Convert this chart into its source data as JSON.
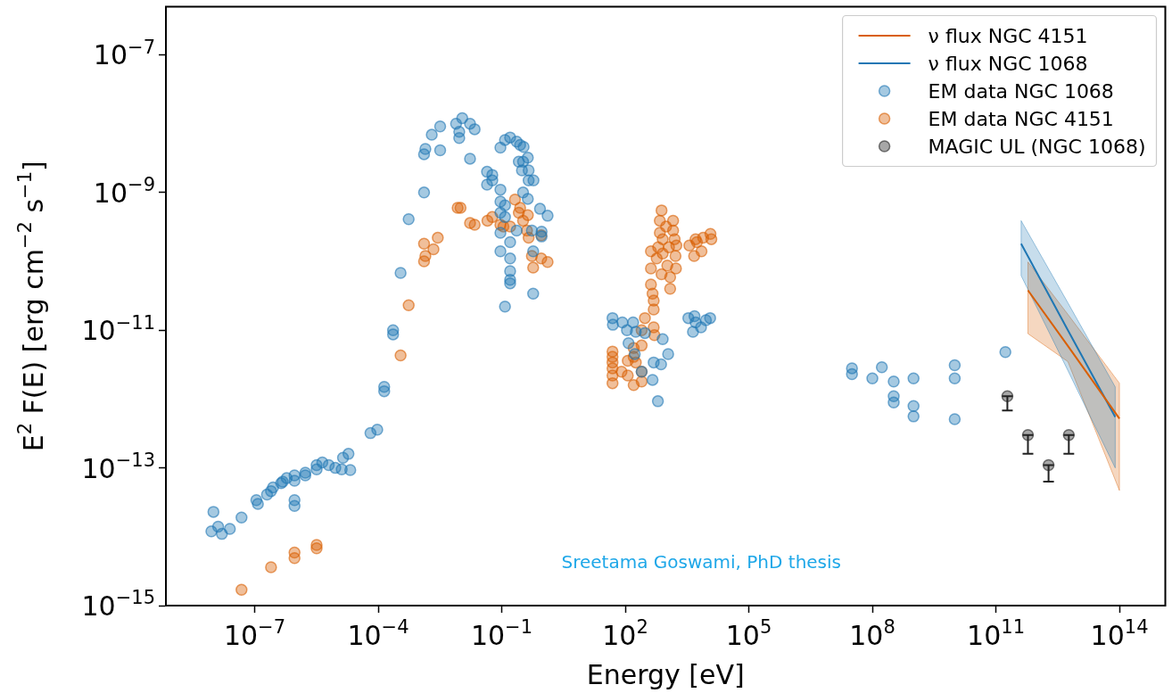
{
  "chart_data": {
    "type": "scatter",
    "xlabel": "Energy [eV]",
    "ylabel": "E$^{2}$ F(E) [erg cm$^{−2}$ s$^{−1}$]",
    "log": "xy",
    "legend": "top right",
    "xlim": [
      7e-10,
      1300000000000000.0
    ],
    "ylim": [
      1e-15,
      5e-07
    ],
    "xticks": [
      {
        "value": 1e-07,
        "label": "10$^{−7}$"
      },
      {
        "value": 0.0001,
        "label": "10$^{−4}$"
      },
      {
        "value": 0.1,
        "label": "10$^{−1}$"
      },
      {
        "value": 100,
        "label": "10$^{2}$"
      },
      {
        "value": 100000.0,
        "label": "10$^{5}$"
      },
      {
        "value": 100000000.0,
        "label": "10$^{8}$"
      },
      {
        "value": 100000000000.0,
        "label": "10$^{11}$"
      },
      {
        "value": 100000000000000.0,
        "label": "10$^{14}$"
      }
    ],
    "yticks": [
      {
        "value": 1e-15,
        "label": "10$^{−15}$"
      },
      {
        "value": 1e-13,
        "label": "10$^{−13}$"
      },
      {
        "value": 1e-11,
        "label": "10$^{−11}$"
      },
      {
        "value": 1e-09,
        "label": "10$^{−9}$"
      },
      {
        "value": 1e-07,
        "label": "10$^{−7}$"
      }
    ],
    "annotations": [
      "Sreetama Goswami, PhD thesis"
    ],
    "series": [
      {
        "name": "ν flux NGC 4151",
        "type": "line",
        "marker": "none",
        "color": "#d95f02",
        "x": [
          600000000000.0,
          5600000000000.0,
          100000000000000.0
        ],
        "values": [
          3.8e-11,
          5.9e-12,
          5.2e-13
        ],
        "lower": [
          8.9e-12,
          3.5e-12,
          4.7e-14
        ],
        "upper": [
          9.8e-11,
          1.7e-11,
          1.7e-12
        ]
      },
      {
        "name": "ν flux NGC 1068",
        "type": "line",
        "marker": "none",
        "color": "#1f77b4",
        "x": [
          410000000000.0,
          5600000000000.0,
          79000000000000.0
        ],
        "values": [
          1.8e-10,
          1e-11,
          5.5e-13
        ],
        "lower": [
          6.2e-11,
          2.6e-12,
          1e-13
        ],
        "upper": [
          3.9e-10,
          2.5e-11,
          1.5e-12
        ]
      },
      {
        "name": "EM data NGC 1068",
        "type": "scatter",
        "marker": "circle",
        "color": "#1f77b4",
        "x": [
          1e-08,
          8.9e-09,
          1.3e-08,
          1.6e-08,
          2.5e-08,
          4.8e-08,
          1.1e-07,
          1.2e-07,
          2e-07,
          2.5e-07,
          2.8e-07,
          4.4e-07,
          4.8e-07,
          6e-07,
          9.3e-07,
          9.3e-07,
          9.3e-07,
          9.3e-07,
          1.7e-06,
          1.7e-06,
          3.2e-06,
          3.2e-06,
          4.4e-06,
          6.3e-06,
          9.1e-06,
          1.3e-05,
          2.1e-05,
          1.4e-05,
          1.9e-05,
          6.5e-05,
          9.5e-05,
          0.00014,
          0.00014,
          0.00023,
          0.00023,
          0.00035,
          0.00055,
          0.0013,
          0.0013,
          0.0014,
          0.002,
          0.0032,
          0.0032,
          0.0078,
          0.0093,
          0.0093,
          0.011,
          0.017,
          0.022,
          0.017,
          0.044,
          0.059,
          0.044,
          0.059,
          0.093,
          0.093,
          0.12,
          0.16,
          0.23,
          0.28,
          0.34,
          0.43,
          0.26,
          0.33,
          0.31,
          0.45,
          0.45,
          0.59,
          0.33,
          0.43,
          0.093,
          0.12,
          0.093,
          0.12,
          0.23,
          0.093,
          0.16,
          0.093,
          0.16,
          0.16,
          0.16,
          0.16,
          0.58,
          0.58,
          0.12,
          0.85,
          1.3,
          0.93,
          0.93,
          0.54,
          49,
          50,
          85,
          110,
          155,
          180,
          120,
          300,
          810,
          1100,
          490,
          740,
          460,
          620,
          170,
          250,
          3400,
          4800,
          5100,
          6900,
          9100,
          11500,
          4400,
          32000000.0,
          32000000.0,
          100000000.0,
          170000000.0,
          330000000.0,
          330000000.0,
          330000000.0,
          1000000000.0,
          1000000000.0,
          1000000000.0,
          10000000000.0,
          10000000000.0,
          10000000000.0,
          170000000000.0
        ],
        "values": [
          2.3e-14,
          1.2e-14,
          1.4e-14,
          1.1e-14,
          1.3e-14,
          1.9e-14,
          3.4e-14,
          3e-14,
          4.1e-14,
          4.6e-14,
          5.2e-14,
          6e-14,
          6.3e-14,
          7.1e-14,
          7.8e-14,
          6.5e-14,
          3.4e-14,
          2.8e-14,
          8.5e-14,
          7.8e-14,
          9.5e-14,
          1.1e-13,
          1.2e-13,
          1.1e-13,
          1e-13,
          9.5e-14,
          9.3e-14,
          1.4e-13,
          1.6e-13,
          3.2e-13,
          3.6e-13,
          1.5e-12,
          1.3e-12,
          1e-11,
          8.7e-12,
          6.8e-11,
          4.1e-10,
          1e-09,
          3.6e-09,
          4.3e-09,
          6.9e-09,
          9.1e-09,
          4.1e-09,
          1e-08,
          7.6e-09,
          6.2e-09,
          1.2e-08,
          1e-08,
          8.3e-09,
          3.1e-09,
          2e-09,
          1.8e-09,
          1.3e-09,
          1.5e-09,
          4.5e-09,
          1.1e-09,
          5.8e-09,
          6.3e-09,
          5.5e-09,
          4.9e-09,
          4.6e-09,
          3.2e-09,
          2.8e-09,
          2.8e-09,
          2.1e-09,
          2.1e-09,
          1.5e-09,
          1.5e-09,
          1e-09,
          8.1e-10,
          7.4e-10,
          6.5e-10,
          5.1e-10,
          4.4e-10,
          2.8e-10,
          2.6e-10,
          1.9e-10,
          1.4e-10,
          1.1e-10,
          7.2e-11,
          5.4e-11,
          4.8e-11,
          1.4e-10,
          3.4e-11,
          2.2e-11,
          5.8e-10,
          4.6e-10,
          2.7e-10,
          2.3e-10,
          2.8e-10,
          1.5e-11,
          1.2e-11,
          1.3e-11,
          1e-11,
          1.3e-11,
          9.5e-12,
          6.5e-12,
          9.1e-12,
          7.4e-12,
          4.5e-12,
          3.4e-12,
          3.2e-12,
          1.9e-12,
          9.3e-13,
          4.5e-12,
          2.5e-12,
          1.5e-11,
          1.6e-11,
          1.3e-11,
          1.1e-11,
          1.4e-11,
          1.5e-11,
          9.5e-12,
          2.8e-12,
          2.3e-12,
          2e-12,
          2.9e-12,
          1.8e-12,
          1.1e-12,
          8.9e-13,
          2e-12,
          7.9e-13,
          5.6e-13,
          3.1e-12,
          2e-12,
          5.1e-13,
          4.8e-12
        ]
      },
      {
        "name": "EM data NGC 4151",
        "type": "scatter",
        "marker": "circle",
        "color": "#d95f02",
        "x": [
          4.8e-08,
          2.5e-07,
          9.3e-07,
          9.3e-07,
          3.2e-06,
          3.2e-06,
          0.00035,
          0.00055,
          0.0013,
          0.0013,
          0.0014,
          0.0022,
          0.0028,
          0.0085,
          0.01,
          0.017,
          0.022,
          0.045,
          0.059,
          0.093,
          0.11,
          0.16,
          0.21,
          0.28,
          0.26,
          0.33,
          0.43,
          0.41,
          0.45,
          0.91,
          0.54,
          0.58,
          0.91,
          1.3,
          49,
          49,
          49,
          49,
          49,
          49,
          81,
          115,
          115,
          160,
          160,
          180,
          160,
          250,
          250,
          250,
          250,
          300,
          490,
          490,
          510,
          490,
          420,
          420,
          420,
          460,
          580,
          630,
          690,
          690,
          760,
          760,
          810,
          810,
          980,
          1050,
          1150,
          1230,
          1230,
          1450,
          1580,
          1660,
          1700,
          1450,
          1740,
          3600,
          4700,
          5100,
          7100,
          7800,
          11700,
          12300,
          5500
        ],
        "values": [
          1.7e-15,
          3.6e-15,
          5.9e-15,
          4.9e-15,
          7.6e-15,
          6.8e-15,
          4.3e-12,
          2.3e-11,
          1.8e-10,
          1e-10,
          1.2e-10,
          1.5e-10,
          2.2e-10,
          6e-10,
          6e-10,
          3.6e-10,
          3.4e-10,
          3.9e-10,
          4.4e-10,
          3.4e-10,
          3.2e-10,
          3.2e-10,
          7.9e-10,
          6e-10,
          5.1e-10,
          3.9e-10,
          4.7e-10,
          2.8e-10,
          2.2e-10,
          2.4e-10,
          1.2e-10,
          8.1e-11,
          1.1e-10,
          9.8e-11,
          4.9e-12,
          4.1e-12,
          3.4e-12,
          2.8e-12,
          2.2e-12,
          1.7e-12,
          2.5e-12,
          3.6e-12,
          2.2e-12,
          5.5e-12,
          4.1e-12,
          3.4e-12,
          1.6e-12,
          1e-11,
          6e-12,
          1.8e-12,
          2.5e-12,
          1.5e-11,
          2e-11,
          1.1e-11,
          8.5e-12,
          2.7e-11,
          4.6e-11,
          7.9e-11,
          1.4e-10,
          3.4e-11,
          1.1e-10,
          1.6e-10,
          2.6e-10,
          3.9e-10,
          5.5e-10,
          6.5e-11,
          1.3e-10,
          2.1e-10,
          3.2e-10,
          8.7e-11,
          1.6e-10,
          4e-11,
          5.9e-11,
          3.9e-10,
          2.1e-10,
          1.2e-10,
          7.9e-11,
          2.8e-10,
          1.7e-10,
          1.7e-10,
          1.2e-10,
          2.1e-10,
          1.4e-10,
          2.2e-10,
          2.5e-10,
          2.1e-10,
          1.9e-10
        ]
      },
      {
        "name": "MAGIC UL (NGC 1068)",
        "type": "scatter",
        "marker": "circle",
        "color": "#222222",
        "x": [
          190000000000.0,
          600000000000.0,
          1900000000000.0,
          5900000000000.0
        ],
        "values": [
          1.1e-12,
          3e-13,
          1.1e-13,
          3e-13
        ],
        "errors": [
          [
            6.8e-13,
            1.1e-12
          ],
          [
            1.6e-13,
            3e-13
          ],
          [
            6.3e-14,
            1.1e-13
          ],
          [
            1.6e-13,
            3e-13
          ]
        ]
      }
    ]
  }
}
